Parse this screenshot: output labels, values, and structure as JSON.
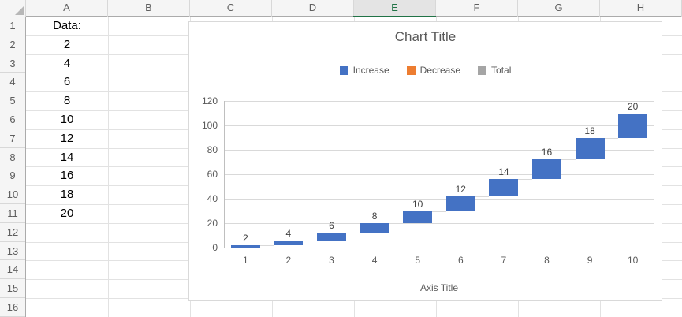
{
  "spreadsheet": {
    "columns": [
      "A",
      "B",
      "C",
      "D",
      "E",
      "F",
      "G",
      "H"
    ],
    "selected_column": "E",
    "rows": [
      "1",
      "2",
      "3",
      "4",
      "5",
      "6",
      "7",
      "8",
      "9",
      "10",
      "11",
      "12",
      "13",
      "14",
      "15",
      "16"
    ],
    "column_a_values": [
      "Data:",
      "2",
      "4",
      "6",
      "8",
      "10",
      "12",
      "14",
      "16",
      "18",
      "20"
    ]
  },
  "chart": {
    "title": "Chart Title",
    "axis_title": "Axis Title",
    "legend": [
      {
        "label": "Increase",
        "color": "#4472C4"
      },
      {
        "label": "Decrease",
        "color": "#ED7D31"
      },
      {
        "label": "Total",
        "color": "#A5A5A5"
      }
    ]
  },
  "chart_data": {
    "type": "bar",
    "subtype": "waterfall",
    "title": "Chart Title",
    "xlabel": "Axis Title",
    "ylabel": "",
    "categories": [
      "1",
      "2",
      "3",
      "4",
      "5",
      "6",
      "7",
      "8",
      "9",
      "10"
    ],
    "values": [
      2,
      4,
      6,
      8,
      10,
      12,
      14,
      16,
      18,
      20
    ],
    "cumulative": [
      2,
      6,
      12,
      20,
      30,
      42,
      56,
      72,
      90,
      110
    ],
    "data_labels": [
      "2",
      "4",
      "6",
      "8",
      "10",
      "12",
      "14",
      "16",
      "18",
      "20"
    ],
    "series_role": "increase",
    "y_ticks": [
      0,
      20,
      40,
      60,
      80,
      100,
      120
    ],
    "ylim": [
      0,
      120
    ],
    "grid": true,
    "legend_position": "top",
    "colors": {
      "increase": "#4472C4",
      "decrease": "#ED7D31",
      "total": "#A5A5A5"
    }
  }
}
